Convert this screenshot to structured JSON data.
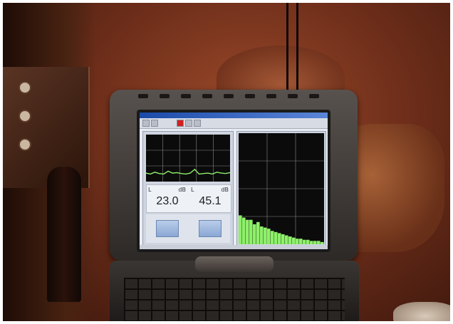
{
  "scene": {
    "subject": "laptop-sound-level-meter",
    "colors": {
      "ambient": "#7a3a22",
      "spectrum_bars": "#8ef06a",
      "screen_bg": "#e8ecf4"
    }
  },
  "app": {
    "readings": [
      {
        "label": "L",
        "unit": "dB",
        "value": "23.0"
      },
      {
        "label": "L",
        "unit": "dB",
        "value": "45.1"
      }
    ],
    "spectrum_levels": [
      0.26,
      0.24,
      0.22,
      0.22,
      0.18,
      0.2,
      0.16,
      0.15,
      0.14,
      0.12,
      0.11,
      0.1,
      0.09,
      0.08,
      0.07,
      0.06,
      0.05,
      0.05,
      0.04,
      0.04,
      0.03,
      0.03,
      0.03,
      0.02
    ],
    "mini_trace": [
      0.12,
      0.1,
      0.14,
      0.11,
      0.1,
      0.16,
      0.12,
      0.13,
      0.11,
      0.1,
      0.12,
      0.2,
      0.1,
      0.11,
      0.12,
      0.1,
      0.14,
      0.12,
      0.11,
      0.13
    ]
  }
}
